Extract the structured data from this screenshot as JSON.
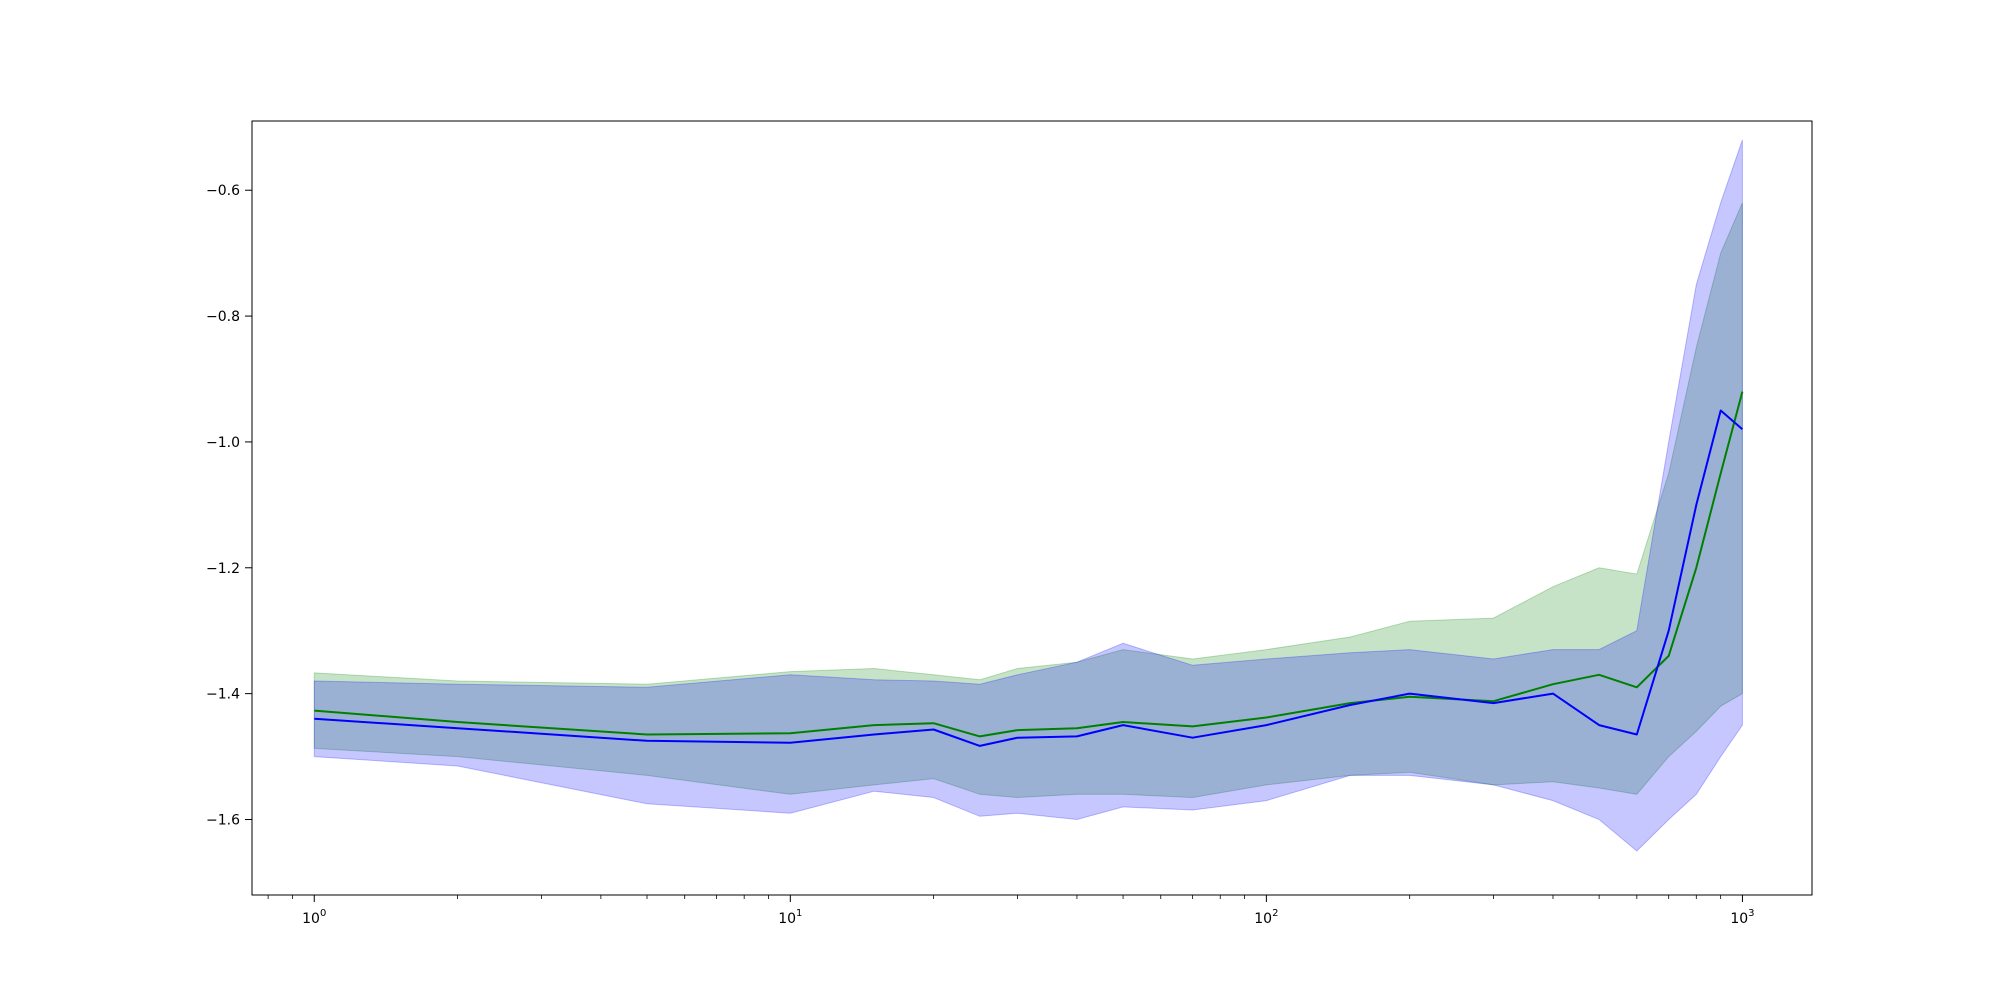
{
  "chart_data": {
    "type": "line",
    "title": "",
    "xlabel": "",
    "ylabel": "",
    "x_scale": "log",
    "xlim": [
      0.74,
      1400
    ],
    "ylim": [
      -1.72,
      -0.49
    ],
    "grid": false,
    "legend": null,
    "x_major_ticks": [
      {
        "value": 1,
        "base": "10",
        "exp": "0"
      },
      {
        "value": 10,
        "base": "10",
        "exp": "1"
      },
      {
        "value": 100,
        "base": "10",
        "exp": "2"
      },
      {
        "value": 1000,
        "base": "10",
        "exp": "3"
      }
    ],
    "x_minor_ticks": [
      0.8,
      0.9,
      2,
      3,
      4,
      5,
      6,
      7,
      8,
      9,
      20,
      30,
      40,
      50,
      60,
      70,
      80,
      90,
      200,
      300,
      400,
      500,
      600,
      700,
      800,
      900
    ],
    "y_ticks": [
      {
        "value": -0.6,
        "label": "−0.6"
      },
      {
        "value": -0.8,
        "label": "−0.8"
      },
      {
        "value": -1.0,
        "label": "−1.0"
      },
      {
        "value": -1.2,
        "label": "−1.2"
      },
      {
        "value": -1.4,
        "label": "−1.4"
      },
      {
        "value": -1.6,
        "label": "−1.6"
      }
    ],
    "series": [
      {
        "color": "#008000",
        "band_color": "#008000",
        "band_opacity": 0.22,
        "x": [
          1,
          2,
          5,
          10,
          15,
          20,
          25,
          30,
          40,
          50,
          70,
          100,
          150,
          200,
          300,
          400,
          500,
          600,
          700,
          800,
          900,
          1000
        ],
        "y": [
          -1.427,
          -1.445,
          -1.465,
          -1.463,
          -1.45,
          -1.447,
          -1.468,
          -1.458,
          -1.455,
          -1.445,
          -1.452,
          -1.438,
          -1.415,
          -1.405,
          -1.412,
          -1.385,
          -1.37,
          -1.39,
          -1.34,
          -1.2,
          -1.05,
          -0.92
        ],
        "upper": [
          -1.367,
          -1.38,
          -1.385,
          -1.365,
          -1.36,
          -1.37,
          -1.378,
          -1.36,
          -1.35,
          -1.33,
          -1.345,
          -1.33,
          -1.31,
          -1.285,
          -1.28,
          -1.23,
          -1.2,
          -1.21,
          -1.05,
          -0.85,
          -0.7,
          -0.62
        ],
        "lower": [
          -1.487,
          -1.5,
          -1.53,
          -1.56,
          -1.545,
          -1.535,
          -1.56,
          -1.565,
          -1.56,
          -1.56,
          -1.565,
          -1.545,
          -1.53,
          -1.525,
          -1.545,
          -1.54,
          -1.55,
          -1.56,
          -1.5,
          -1.46,
          -1.42,
          -1.4
        ]
      },
      {
        "color": "#0000ff",
        "band_color": "#0000ff",
        "band_opacity": 0.22,
        "x": [
          1,
          2,
          5,
          10,
          15,
          20,
          25,
          30,
          40,
          50,
          70,
          100,
          150,
          200,
          300,
          400,
          500,
          600,
          700,
          800,
          900,
          1000
        ],
        "y": [
          -1.44,
          -1.455,
          -1.475,
          -1.478,
          -1.465,
          -1.457,
          -1.483,
          -1.47,
          -1.468,
          -1.45,
          -1.47,
          -1.45,
          -1.418,
          -1.4,
          -1.415,
          -1.4,
          -1.45,
          -1.465,
          -1.3,
          -1.1,
          -0.95,
          -0.98
        ],
        "upper": [
          -1.38,
          -1.385,
          -1.39,
          -1.37,
          -1.378,
          -1.38,
          -1.385,
          -1.37,
          -1.35,
          -1.32,
          -1.355,
          -1.345,
          -1.335,
          -1.33,
          -1.345,
          -1.33,
          -1.33,
          -1.3,
          -1.0,
          -0.75,
          -0.62,
          -0.52
        ],
        "lower": [
          -1.5,
          -1.515,
          -1.575,
          -1.59,
          -1.555,
          -1.565,
          -1.595,
          -1.59,
          -1.6,
          -1.58,
          -1.585,
          -1.57,
          -1.53,
          -1.53,
          -1.545,
          -1.57,
          -1.6,
          -1.65,
          -1.6,
          -1.56,
          -1.5,
          -1.45
        ]
      }
    ]
  }
}
